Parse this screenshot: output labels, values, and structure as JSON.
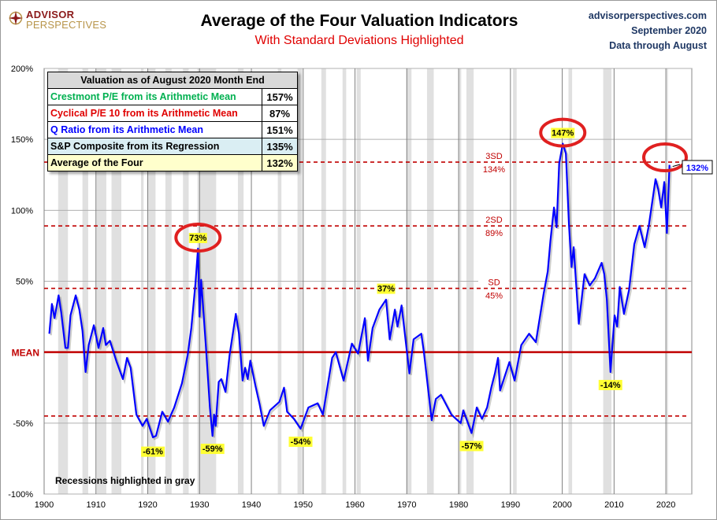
{
  "header": {
    "logo_line1": "ADVISOR",
    "logo_line2": "PERSPECTIVES",
    "title": "Average of the Four Valuation Indicators",
    "subtitle": "With Standard Deviations Highlighted",
    "site": "advisorperspectives.com",
    "date": "September 2020",
    "data_through": "Data through August"
  },
  "table": {
    "title": "Valuation as of August 2020  Month End",
    "rows": [
      {
        "label": "Crestmont P/E from its Arithmetic Mean",
        "value": "157%",
        "color": "#00b050",
        "bg": "#ffffff"
      },
      {
        "label": "Cyclical P/E 10 from its Arithmetic Mean",
        "value": "87%",
        "color": "#e00000",
        "bg": "#ffffff"
      },
      {
        "label": "Q Ratio from its Arithmetic Mean",
        "value": "151%",
        "color": "#0000ff",
        "bg": "#ffffff"
      },
      {
        "label": "S&P Composite from its Regression",
        "value": "135%",
        "color": "#000000",
        "bg": "#daeef3"
      },
      {
        "label": "Average of the Four",
        "value": "132%",
        "color": "#000000",
        "bg": "#ffffcc"
      }
    ]
  },
  "chart_data": {
    "type": "line",
    "xlim": [
      1900,
      2025
    ],
    "ylim": [
      -100,
      200
    ],
    "grid": true,
    "x_ticks": [
      1900,
      1910,
      1920,
      1930,
      1940,
      1950,
      1960,
      1970,
      1980,
      1990,
      2000,
      2010,
      2020
    ],
    "y_ticks": [
      {
        "value": 200,
        "label": "200%"
      },
      {
        "value": 150,
        "label": "150%"
      },
      {
        "value": 100,
        "label": "100%"
      },
      {
        "value": 50,
        "label": "50%"
      },
      {
        "value": 0,
        "label": "MEAN"
      },
      {
        "value": -50,
        "label": "-50%"
      },
      {
        "value": -100,
        "label": "-100%"
      }
    ],
    "line_color": "#0000ff",
    "mean_color": "#c00000",
    "sd_lines": [
      {
        "value": 134,
        "label_top": "3SD",
        "label_bottom": "134%"
      },
      {
        "value": 89,
        "label_top": "2SD",
        "label_bottom": "89%"
      },
      {
        "value": 45,
        "label_top": "SD",
        "label_bottom": "45%"
      },
      {
        "value": -45,
        "label_top": "",
        "label_bottom": ""
      }
    ],
    "recession_note": "Recessions highlighted in gray",
    "recessions": [
      [
        1902.7,
        1904.6
      ],
      [
        1907.4,
        1908.5
      ],
      [
        1910.1,
        1912.0
      ],
      [
        1913.0,
        1914.9
      ],
      [
        1918.7,
        1919.2
      ],
      [
        1920.0,
        1921.5
      ],
      [
        1923.4,
        1924.6
      ],
      [
        1926.8,
        1927.9
      ],
      [
        1929.6,
        1933.2
      ],
      [
        1937.4,
        1938.5
      ],
      [
        1945.1,
        1945.8
      ],
      [
        1948.9,
        1949.8
      ],
      [
        1953.5,
        1954.4
      ],
      [
        1957.6,
        1958.3
      ],
      [
        1960.3,
        1961.1
      ],
      [
        1969.9,
        1970.9
      ],
      [
        1973.9,
        1975.2
      ],
      [
        1980.0,
        1980.5
      ],
      [
        1981.5,
        1982.9
      ],
      [
        1990.5,
        1991.2
      ],
      [
        2001.2,
        2001.9
      ],
      [
        2007.9,
        2009.5
      ],
      [
        2020.1,
        2020.4
      ]
    ],
    "series": [
      {
        "x": [
          1901.0,
          1901.5,
          1902.0,
          1902.8,
          1903.3,
          1904.1,
          1904.6,
          1905.1,
          1906.1,
          1906.8,
          1907.4,
          1908.0,
          1908.6,
          1909.6,
          1910.5,
          1911.4,
          1911.9,
          1912.7,
          1914.0,
          1915.2,
          1916.0,
          1916.7,
          1917.8,
          1919.0,
          1919.8,
          1921.0,
          1921.6,
          1922.8,
          1923.9,
          1925.1,
          1926.6,
          1927.7,
          1928.4,
          1929.2,
          1929.7,
          1930.0,
          1930.3,
          1931.2,
          1932.0,
          1932.5,
          1932.8,
          1933.1,
          1933.7,
          1934.2,
          1935.0,
          1935.8,
          1937.0,
          1937.6,
          1938.3,
          1938.8,
          1939.3,
          1939.8,
          1940.8,
          1941.6,
          1942.4,
          1943.6,
          1945.4,
          1946.3,
          1946.9,
          1948.2,
          1949.5,
          1951.0,
          1952.8,
          1953.8,
          1955.6,
          1956.3,
          1957.8,
          1959.4,
          1960.6,
          1961.9,
          1962.5,
          1963.4,
          1964.7,
          1966.0,
          1966.7,
          1967.7,
          1968.2,
          1969.0,
          1970.5,
          1971.3,
          1972.8,
          1973.3,
          1974.8,
          1975.6,
          1976.6,
          1978.6,
          1980.4,
          1980.9,
          1982.5,
          1983.5,
          1984.5,
          1985.5,
          1986.3,
          1987.0,
          1987.6,
          1988.0,
          1989.8,
          1990.8,
          1992.1,
          1993.6,
          1994.9,
          1996.4,
          1997.2,
          1997.7,
          1998.4,
          1998.9,
          1999.4,
          2000.1,
          2000.7,
          2001.3,
          2001.8,
          2002.2,
          2003.2,
          2004.3,
          2005.3,
          2006.3,
          2007.6,
          2008.1,
          2008.6,
          2009.3,
          2010.1,
          2010.6,
          2011.1,
          2011.9,
          2012.9,
          2013.9,
          2014.9,
          2015.9,
          2016.7,
          2018.0,
          2018.5,
          2019.1,
          2019.7,
          2020.2,
          2020.7
        ],
        "y": [
          13,
          34,
          24,
          40,
          28,
          3,
          3,
          26,
          40,
          30,
          15,
          -14,
          5,
          19,
          3,
          17,
          5,
          8,
          -7,
          -19,
          -4,
          -11,
          -44,
          -52,
          -47,
          -60,
          -59,
          -42,
          -49,
          -39,
          -22,
          -2,
          17,
          48,
          73,
          25,
          51,
          5,
          -39,
          -59,
          -44,
          -52,
          -21,
          -19,
          -28,
          -2,
          27,
          13,
          -20,
          -11,
          -19,
          -6,
          -24,
          -37,
          -52,
          -41,
          -35,
          -25,
          -42,
          -47,
          -54,
          -39,
          -36,
          -44,
          -4,
          0,
          -20,
          6,
          -1,
          24,
          -6,
          17,
          30,
          37,
          9,
          30,
          18,
          33,
          -15,
          9,
          13,
          0,
          -48,
          -33,
          -30,
          -44,
          -50,
          -41,
          -57,
          -39,
          -47,
          -39,
          -25,
          -15,
          -4,
          -27,
          -7,
          -20,
          5,
          13,
          7,
          41,
          57,
          78,
          102,
          88,
          133,
          147,
          140,
          90,
          60,
          74,
          20,
          55,
          47,
          52,
          63,
          55,
          37,
          -14,
          26,
          18,
          46,
          27,
          44,
          76,
          89,
          74,
          89,
          122,
          115,
          102,
          120,
          84,
          132
        ]
      }
    ],
    "annotations": [
      {
        "x": 1929.7,
        "y": 73,
        "label": "73%",
        "circled": true
      },
      {
        "x": 2000.1,
        "y": 147,
        "label": "147%",
        "circled": true
      },
      {
        "x": 1966.0,
        "y": 37,
        "label": "37%",
        "circled": false
      },
      {
        "x": 1921.0,
        "y": -61,
        "label": "-61%",
        "circled": false
      },
      {
        "x": 1932.5,
        "y": -59,
        "label": "-59%",
        "circled": false
      },
      {
        "x": 1949.5,
        "y": -54,
        "label": "-54%",
        "circled": false
      },
      {
        "x": 1982.5,
        "y": -57,
        "label": "-57%",
        "circled": false
      },
      {
        "x": 2009.3,
        "y": -14,
        "label": "-14%",
        "circled": false
      }
    ],
    "latest_label": "132%"
  }
}
